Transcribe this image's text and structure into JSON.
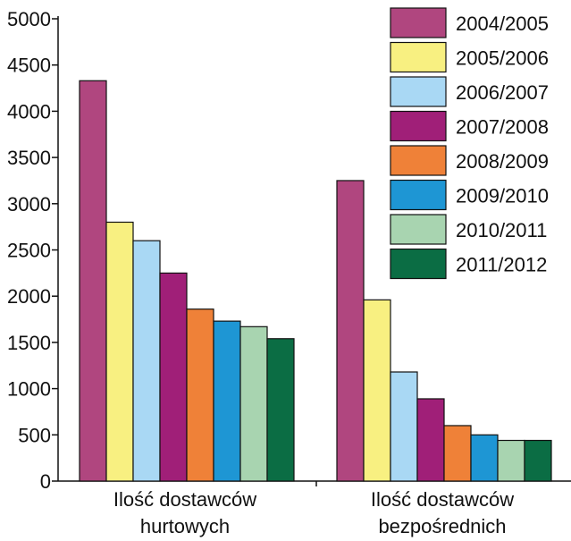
{
  "chart_data": {
    "type": "bar",
    "categories": [
      "Ilość dostawców hurtowych",
      "Ilość dostawców bezpośrednich"
    ],
    "category_lines": [
      [
        "Ilość dostawców",
        "hurtowych"
      ],
      [
        "Ilość dostawców",
        "bezpośrednich"
      ]
    ],
    "series": [
      {
        "name": "2004/2005",
        "color": "#b0467f",
        "values": [
          4330,
          3250
        ]
      },
      {
        "name": "2005/2006",
        "color": "#f8f081",
        "values": [
          2800,
          1960
        ]
      },
      {
        "name": "2006/2007",
        "color": "#a9d8f4",
        "values": [
          2600,
          1180
        ]
      },
      {
        "name": "2007/2008",
        "color": "#a01f78",
        "values": [
          2250,
          890
        ]
      },
      {
        "name": "2008/2009",
        "color": "#ef8138",
        "values": [
          1860,
          600
        ]
      },
      {
        "name": "2009/2010",
        "color": "#1e96d4",
        "values": [
          1730,
          500
        ]
      },
      {
        "name": "2010/2011",
        "color": "#a8d4b0",
        "values": [
          1670,
          440
        ]
      },
      {
        "name": "2011/2012",
        "color": "#0b6d44",
        "values": [
          1540,
          440
        ]
      }
    ],
    "y_ticks": [
      0,
      500,
      1000,
      1500,
      2000,
      2500,
      3000,
      3500,
      4000,
      4500,
      5000
    ],
    "ylim": [
      0,
      5000
    ],
    "title": "",
    "xlabel": "",
    "ylabel": "",
    "legend_position": "top-right",
    "grid": false
  }
}
